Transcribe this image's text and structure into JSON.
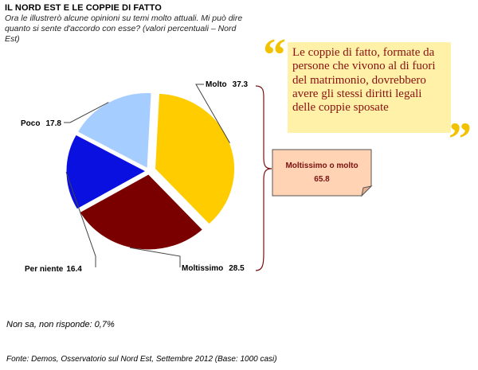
{
  "header": {
    "title": "IL NORD EST E LE COPPIE DI FATTO",
    "subtitle": "Ora le illustrerò alcune opinioni su temi molto attuali. Mi può dire quanto si sente d'accordo con esse? (valori percentuali – Nord Est)"
  },
  "quote": {
    "text": "Le coppie di fatto, formate da persone che vivono al di fuori del matrimonio, dovrebbero avere gli stessi diritti legali delle coppie sposate",
    "open_mark": "“",
    "close_mark": "”"
  },
  "chart_data": {
    "type": "pie",
    "slices": [
      {
        "label": "Molto",
        "value": 37.3,
        "color": "#ffcc00"
      },
      {
        "label": "Moltissimo",
        "value": 28.5,
        "color": "#7a0000"
      },
      {
        "label": "Per niente",
        "value": 16.4,
        "color": "#0a10e0"
      },
      {
        "label": "Poco",
        "value": 17.8,
        "color": "#a6cdff"
      }
    ],
    "summary_box": {
      "label": "Moltissimo o molto",
      "value": "65.8",
      "color": "#ffd3b4",
      "brace_color": "#7a1010"
    }
  },
  "footer": {
    "note": "Non sa, non risponde: 0,7%",
    "source": "Fonte: Demos, Osservatorio sul Nord Est, Settembre 2012 (Base: 1000 casi)"
  }
}
